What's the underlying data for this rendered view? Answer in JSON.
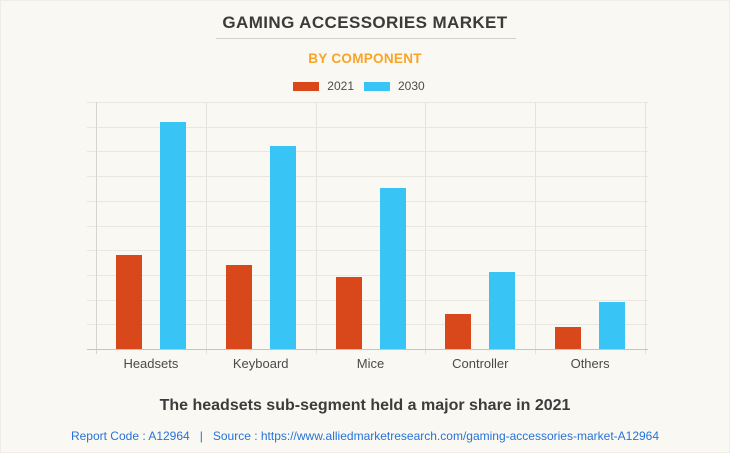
{
  "page": {
    "title": "GAMING ACCESSORIES MARKET",
    "subtitle": "BY COMPONENT",
    "footnote": "The headsets sub-segment held a major share in 2021",
    "report_code": "Report Code : A12964",
    "separator": "|",
    "source": "Source : https://www.alliedmarketresearch.com/gaming-accessories-market-A12964"
  },
  "colors": {
    "series_2021": "#d9481a",
    "series_2030": "#38c4f4",
    "subtitle_accent": "#f8a428",
    "link_blue": "#2673d8"
  },
  "chart_data": {
    "type": "bar",
    "title": "GAMING ACCESSORIES MARKET",
    "subtitle": "BY COMPONENT",
    "categories": [
      "Headsets",
      "Keyboard",
      "Mice",
      "Controller",
      "Others"
    ],
    "series": [
      {
        "name": "2021",
        "color": "#d9481a",
        "values": [
          3.8,
          3.4,
          2.9,
          1.4,
          0.9
        ]
      },
      {
        "name": "2030",
        "color": "#38c4f4",
        "values": [
          9.2,
          8.2,
          6.5,
          3.1,
          1.9
        ]
      }
    ],
    "xlabel": "",
    "ylabel": "",
    "ylim": [
      0,
      10
    ],
    "y_gridline_step": 1,
    "y_axis_labels_visible": false,
    "grid": true,
    "legend_position": "top"
  }
}
